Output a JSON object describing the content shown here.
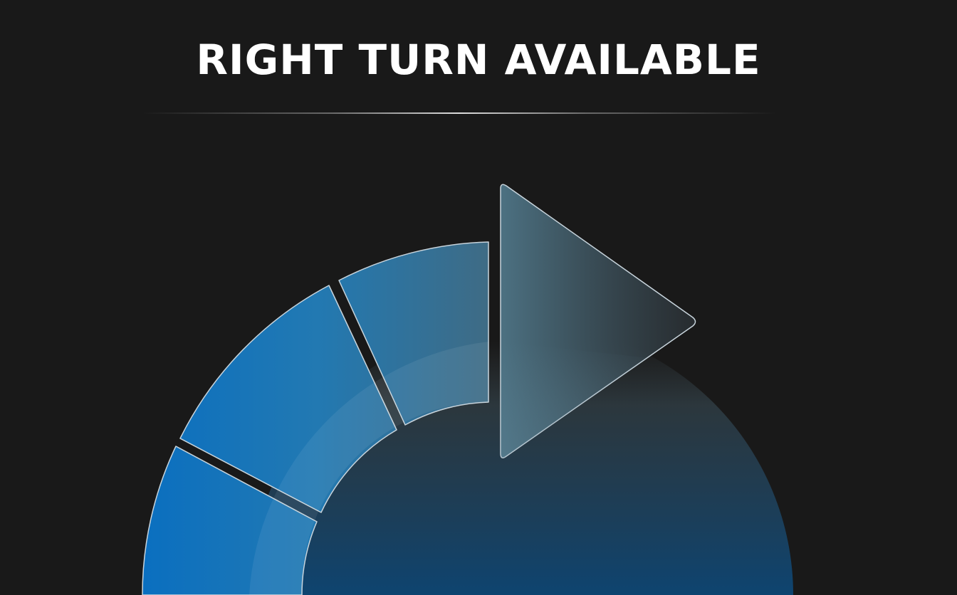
{
  "banner": {
    "title": "RIGHT TURN AVAILABLE"
  },
  "colors": {
    "background": "#191919",
    "title": "#ffffff",
    "accent_blue": "#0a6fc0",
    "segment_outline": "#c8d4dc"
  },
  "icons": {
    "turn_arrow": "right-turn-arrow-icon"
  }
}
